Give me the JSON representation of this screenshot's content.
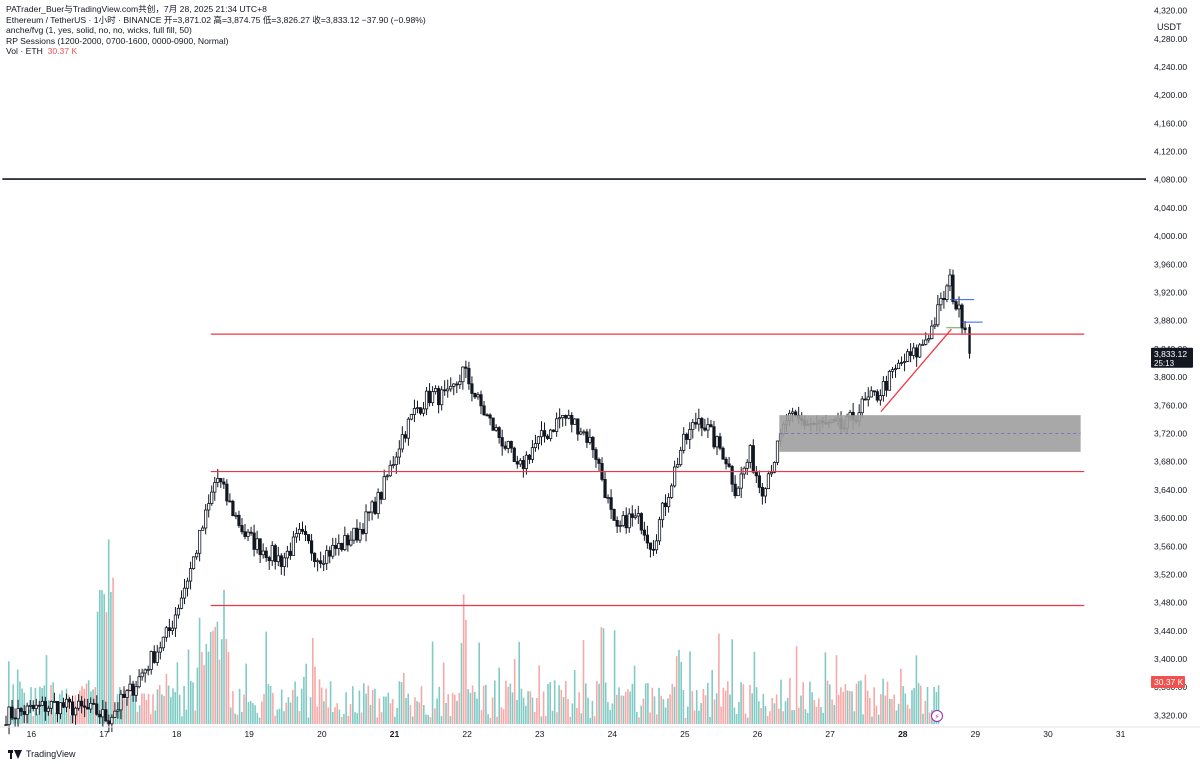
{
  "header": {
    "attribution": "PATrader_Buer与TradingView.com共创，7月 28, 2025 21:34 UTC+8",
    "symbol_line": "Ethereum / TetherUS · 1小时 · BINANCE  开=3,871.02  高=3,874.75  低=3,826.27  收=3,833.12  −37.90 (−0.98%)",
    "indicator_fvg": "anche/fvg (1, yes, solid, no, no, wicks, full fill, 50)",
    "indicator_sessions": "RP Sessions (1200-2000, 0700-1600, 0000-0900, Normal)",
    "vol_label": "Vol · ETH",
    "vol_value": "30.37 K"
  },
  "brand": {
    "name": "TradingView"
  },
  "price_axis": {
    "currency": "USDT",
    "tick_labels": [
      "4,320.00",
      "4,280.00",
      "4,240.00",
      "4,200.00",
      "4,160.00",
      "4,120.00",
      "4,080.00",
      "4,040.00",
      "4,000.00",
      "3,960.00",
      "3,920.00",
      "3,880.00",
      "3,840.00",
      "3,800.00",
      "3,760.00",
      "3,720.00",
      "3,680.00",
      "3,640.00",
      "3,600.00",
      "3,560.00",
      "3,520.00",
      "3,480.00",
      "3,440.00",
      "3,400.00",
      "3,360.00",
      "3,320.00"
    ],
    "last_price_label": "3,833.12",
    "countdown_label": "25:13",
    "volume_label": "30.37 K"
  },
  "time_axis": {
    "tick_labels": [
      "16",
      "17",
      "18",
      "19",
      "20",
      "21",
      "22",
      "23",
      "24",
      "25",
      "26",
      "27",
      "28",
      "29",
      "30",
      "31"
    ],
    "bold_labels": [
      "21",
      "28"
    ]
  },
  "colors": {
    "up": "#131722",
    "down": "#131722",
    "vol_up": "#80cbc4",
    "vol_down": "#f7a9a7",
    "level_line": "#f23645",
    "black_line": "#131722",
    "zone_fill": "#9e9e9e",
    "short_line": "#2962ff",
    "last_price_bg": "#131722",
    "vol_badge": "#ef5350"
  },
  "chart_data": {
    "type": "candlestick",
    "title": "Ethereum / TetherUS · 1小时 · BINANCE",
    "ylabel": "USDT",
    "ylim": [
      3305,
      4335
    ],
    "xlim": [
      15.65,
      31.35
    ],
    "last": {
      "open": 3871.02,
      "high": 3874.75,
      "low": 3826.27,
      "close": 3833.12,
      "change": -37.9,
      "change_pct": -0.98
    },
    "horizontal_levels": [
      {
        "price": 4081,
        "from": 15.6,
        "to": 31.4,
        "color": "black"
      },
      {
        "price": 3861,
        "from": 18.47,
        "to": 30.5,
        "color": "red"
      },
      {
        "price": 3666,
        "from": 18.47,
        "to": 30.5,
        "color": "red"
      },
      {
        "price": 3476,
        "from": 18.47,
        "to": 30.5,
        "color": "red"
      }
    ],
    "zone": {
      "from": 26.3,
      "to": 30.45,
      "top": 3746,
      "bottom": 3694,
      "mid": 3720
    },
    "trendline": {
      "x1": 27.7,
      "y1": 3751,
      "x2": 28.67,
      "y2": 3868
    },
    "short_lines": [
      {
        "price": 3910,
        "from": 28.65,
        "to": 28.98
      },
      {
        "price": 3878,
        "from": 28.82,
        "to": 29.1
      },
      {
        "price": 3870,
        "from": 28.6,
        "to": 28.8
      }
    ],
    "anchors": [
      [
        15.65,
        3320
      ],
      [
        16.3,
        3335
      ],
      [
        16.9,
        3325
      ],
      [
        17.05,
        3315
      ],
      [
        17.4,
        3360
      ],
      [
        17.9,
        3440
      ],
      [
        18.2,
        3530
      ],
      [
        18.45,
        3620
      ],
      [
        18.55,
        3660
      ],
      [
        18.7,
        3625
      ],
      [
        18.95,
        3575
      ],
      [
        19.2,
        3555
      ],
      [
        19.45,
        3540
      ],
      [
        19.7,
        3575
      ],
      [
        19.95,
        3545
      ],
      [
        20.25,
        3560
      ],
      [
        20.5,
        3580
      ],
      [
        20.8,
        3630
      ],
      [
        21.1,
        3715
      ],
      [
        21.3,
        3755
      ],
      [
        21.5,
        3775
      ],
      [
        21.75,
        3770
      ],
      [
        21.95,
        3810
      ],
      [
        22.15,
        3765
      ],
      [
        22.35,
        3730
      ],
      [
        22.55,
        3700
      ],
      [
        22.7,
        3665
      ],
      [
        22.9,
        3700
      ],
      [
        23.1,
        3720
      ],
      [
        23.3,
        3745
      ],
      [
        23.55,
        3730
      ],
      [
        23.75,
        3700
      ],
      [
        23.9,
        3640
      ],
      [
        24.05,
        3575
      ],
      [
        24.2,
        3600
      ],
      [
        24.4,
        3595
      ],
      [
        24.55,
        3560
      ],
      [
        24.75,
        3630
      ],
      [
        24.95,
        3700
      ],
      [
        25.2,
        3745
      ],
      [
        25.4,
        3710
      ],
      [
        25.55,
        3690
      ],
      [
        25.7,
        3640
      ],
      [
        25.9,
        3690
      ],
      [
        26.05,
        3640
      ],
      [
        26.25,
        3690
      ],
      [
        26.4,
        3740
      ],
      [
        26.7,
        3735
      ],
      [
        26.95,
        3730
      ],
      [
        27.2,
        3728
      ],
      [
        27.45,
        3760
      ],
      [
        27.65,
        3775
      ],
      [
        27.8,
        3795
      ],
      [
        28.0,
        3822
      ],
      [
        28.2,
        3835
      ],
      [
        28.4,
        3870
      ],
      [
        28.55,
        3910
      ],
      [
        28.65,
        3935
      ],
      [
        28.72,
        3905
      ],
      [
        28.8,
        3885
      ],
      [
        28.9,
        3871
      ]
    ],
    "volume_bars": 420,
    "last_volume": 30370
  }
}
